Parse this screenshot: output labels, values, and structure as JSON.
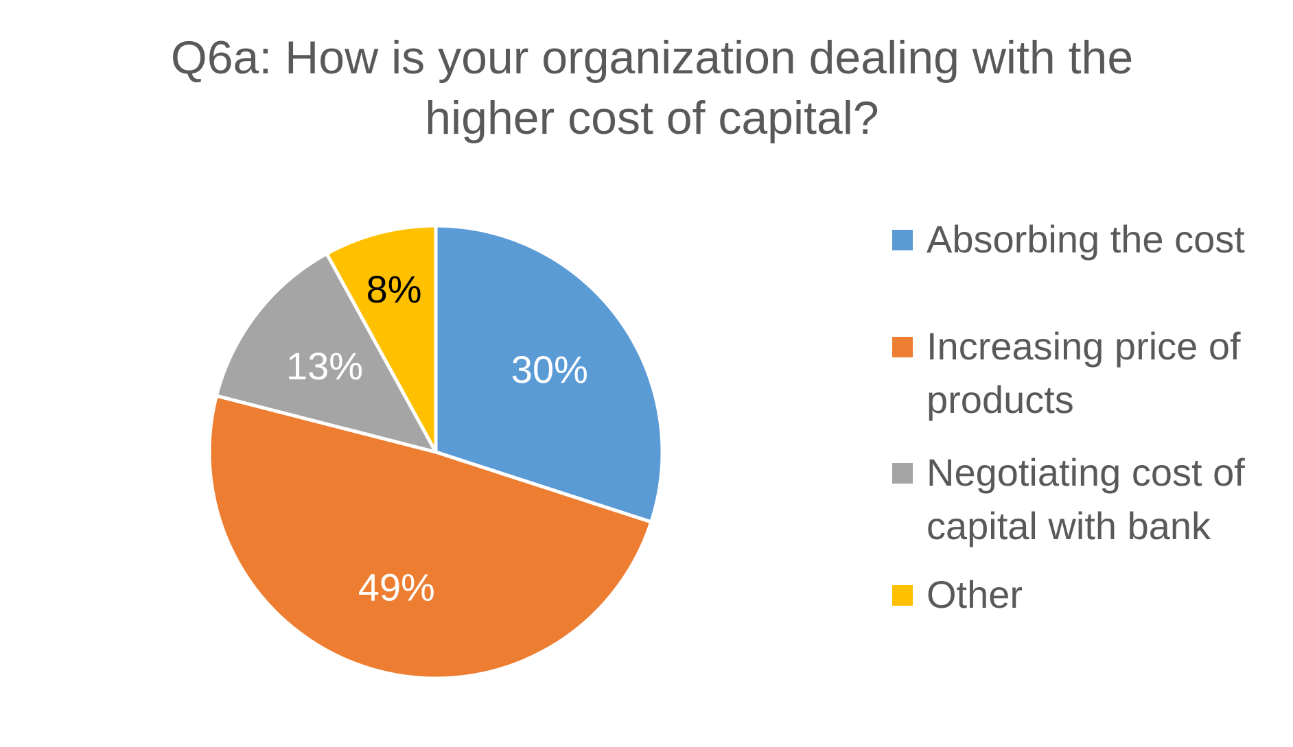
{
  "chart_data": {
    "type": "pie",
    "title_lines": [
      "Q6a: How is your organization dealing with the",
      "higher cost of capital?"
    ],
    "categories": [
      "Absorbing the cost",
      "Increasing price of products",
      "Negotiating cost of capital with bank",
      "Other"
    ],
    "legend_lines": [
      [
        "Absorbing the cost"
      ],
      [
        "Increasing price of",
        "products"
      ],
      [
        "Negotiating cost of",
        "capital with bank"
      ],
      [
        "Other"
      ]
    ],
    "values": [
      30,
      49,
      13,
      8
    ],
    "data_labels": [
      "30%",
      "49%",
      "13%",
      "8%"
    ],
    "colors": [
      "#5B9BD5",
      "#ED7D31",
      "#A5A5A5",
      "#FFC000"
    ],
    "label_colors": [
      "#ffffff",
      "#ffffff",
      "#ffffff",
      "#000000"
    ],
    "legend_position": "right",
    "start_angle": "12 o'clock",
    "direction": "clockwise"
  }
}
